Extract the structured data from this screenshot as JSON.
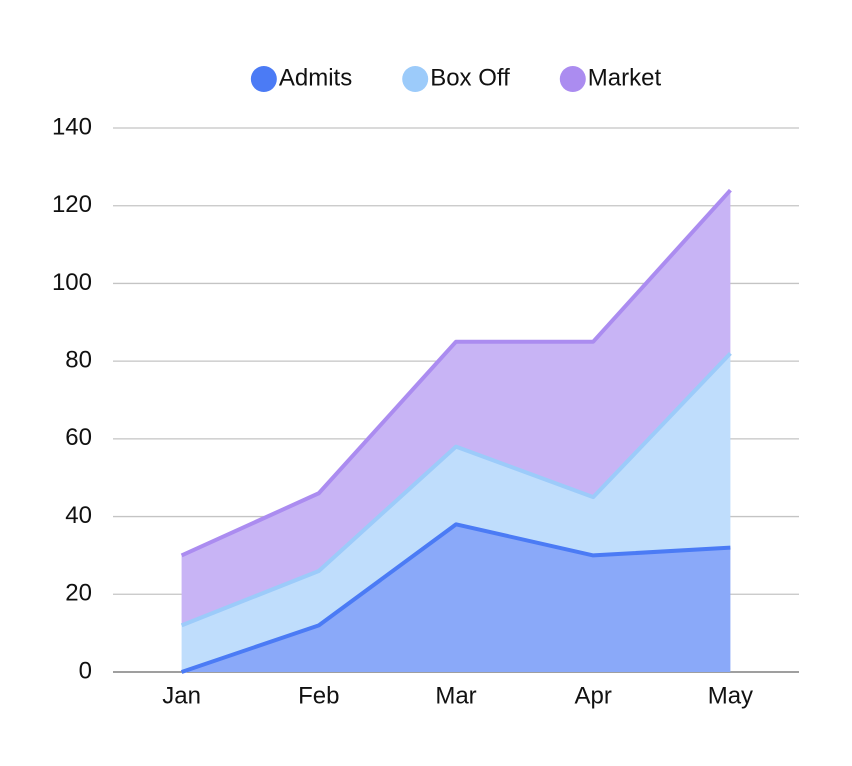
{
  "chart_data": {
    "type": "stacked-area",
    "categories": [
      "Jan",
      "Feb",
      "Mar",
      "Apr",
      "May"
    ],
    "series": [
      {
        "name": "Admits",
        "color": "#4b7bf5",
        "values": [
          0,
          12,
          38,
          30,
          32
        ]
      },
      {
        "name": "Box Off",
        "color": "#9ccbfa",
        "values": [
          12,
          14,
          20,
          15,
          50
        ]
      },
      {
        "name": "Market",
        "color": "#ab8cf0",
        "values": [
          18,
          20,
          27,
          40,
          42
        ]
      }
    ],
    "ylim": [
      0,
      140
    ],
    "yticks": [
      0,
      20,
      40,
      60,
      80,
      100,
      120,
      140
    ],
    "grid": true,
    "legend": "top"
  }
}
